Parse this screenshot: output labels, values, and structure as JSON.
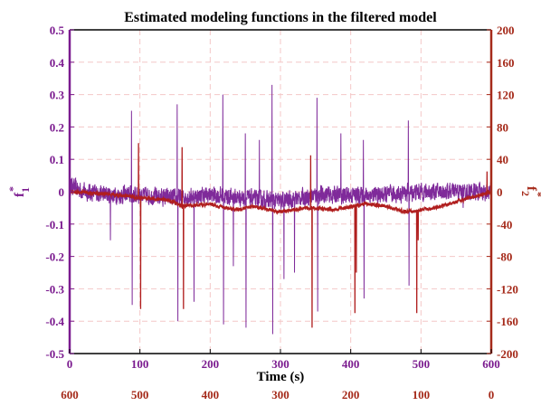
{
  "chart_data": {
    "type": "line",
    "title": "Estimated modeling functions in the filtered model",
    "xlabel": "Time (s)",
    "xlim": [
      0,
      600
    ],
    "x_ticks": [
      0,
      100,
      200,
      300,
      400,
      500,
      600
    ],
    "x2_ticks": [
      600,
      500,
      400,
      300,
      200,
      100,
      0
    ],
    "y_left": {
      "label_main": "f",
      "label_sup": "*",
      "label_sub": "1",
      "lim": [
        -0.5,
        0.5
      ],
      "ticks": [
        0.5,
        0.4,
        0.3,
        0.2,
        0.1,
        0,
        -0.1,
        -0.2,
        -0.3,
        -0.4,
        -0.5
      ],
      "color": "#7B1B8F"
    },
    "y_right": {
      "label_main": "f",
      "label_sup": "*",
      "label_sub": "2",
      "lim": [
        -200,
        200
      ],
      "ticks": [
        200,
        160,
        120,
        80,
        40,
        0,
        -40,
        -80,
        -120,
        -160,
        -200
      ],
      "color": "#A52A1A"
    },
    "grid": true,
    "series": [
      {
        "axis": "left",
        "color": "#7F2A9A",
        "baseline": [
          [
            0,
            0.02
          ],
          [
            20,
            0.0
          ],
          [
            60,
            -0.01
          ],
          [
            100,
            -0.01
          ],
          [
            150,
            -0.02
          ],
          [
            200,
            -0.01
          ],
          [
            250,
            -0.02
          ],
          [
            300,
            -0.03
          ],
          [
            350,
            -0.01
          ],
          [
            400,
            -0.01
          ],
          [
            450,
            -0.01
          ],
          [
            500,
            0.0
          ],
          [
            550,
            0.0
          ],
          [
            600,
            0.0
          ]
        ],
        "noise_amplitude": 0.035,
        "spikes": [
          {
            "x": 88,
            "y": 0.25
          },
          {
            "x": 89,
            "y": -0.35
          },
          {
            "x": 153,
            "y": 0.27
          },
          {
            "x": 154,
            "y": -0.4
          },
          {
            "x": 177,
            "y": -0.34
          },
          {
            "x": 218,
            "y": 0.3
          },
          {
            "x": 219,
            "y": -0.41
          },
          {
            "x": 233,
            "y": -0.23
          },
          {
            "x": 250,
            "y": 0.18
          },
          {
            "x": 251,
            "y": -0.42
          },
          {
            "x": 270,
            "y": 0.16
          },
          {
            "x": 288,
            "y": 0.33
          },
          {
            "x": 289,
            "y": -0.44
          },
          {
            "x": 320,
            "y": -0.25
          },
          {
            "x": 352,
            "y": 0.29
          },
          {
            "x": 353,
            "y": -0.37
          },
          {
            "x": 386,
            "y": 0.18
          },
          {
            "x": 418,
            "y": 0.16
          },
          {
            "x": 419,
            "y": -0.33
          },
          {
            "x": 482,
            "y": 0.22
          },
          {
            "x": 483,
            "y": -0.29
          },
          {
            "x": 58,
            "y": -0.15
          },
          {
            "x": 305,
            "y": -0.27
          },
          {
            "x": 560,
            "y": -0.05
          }
        ]
      },
      {
        "axis": "right",
        "color": "#B01E1E",
        "baseline": [
          [
            0,
            0
          ],
          [
            40,
            -2
          ],
          [
            80,
            -5
          ],
          [
            100,
            -8
          ],
          [
            140,
            -10
          ],
          [
            160,
            -18
          ],
          [
            200,
            -15
          ],
          [
            220,
            -20
          ],
          [
            240,
            -22
          ],
          [
            260,
            -18
          ],
          [
            300,
            -25
          ],
          [
            340,
            -20
          ],
          [
            380,
            -22
          ],
          [
            420,
            -15
          ],
          [
            450,
            -18
          ],
          [
            480,
            -25
          ],
          [
            520,
            -20
          ],
          [
            560,
            -10
          ],
          [
            600,
            0
          ]
        ],
        "noise_amplitude": 3,
        "spikes": [
          {
            "x": 98,
            "y": 60
          },
          {
            "x": 101,
            "y": -145
          },
          {
            "x": 160,
            "y": 55
          },
          {
            "x": 162,
            "y": -145
          },
          {
            "x": 343,
            "y": 45
          },
          {
            "x": 345,
            "y": -168
          },
          {
            "x": 406,
            "y": -150
          },
          {
            "x": 408,
            "y": -100
          },
          {
            "x": 494,
            "y": -150
          },
          {
            "x": 496,
            "y": -60
          },
          {
            "x": 594,
            "y": 25
          }
        ]
      }
    ]
  }
}
